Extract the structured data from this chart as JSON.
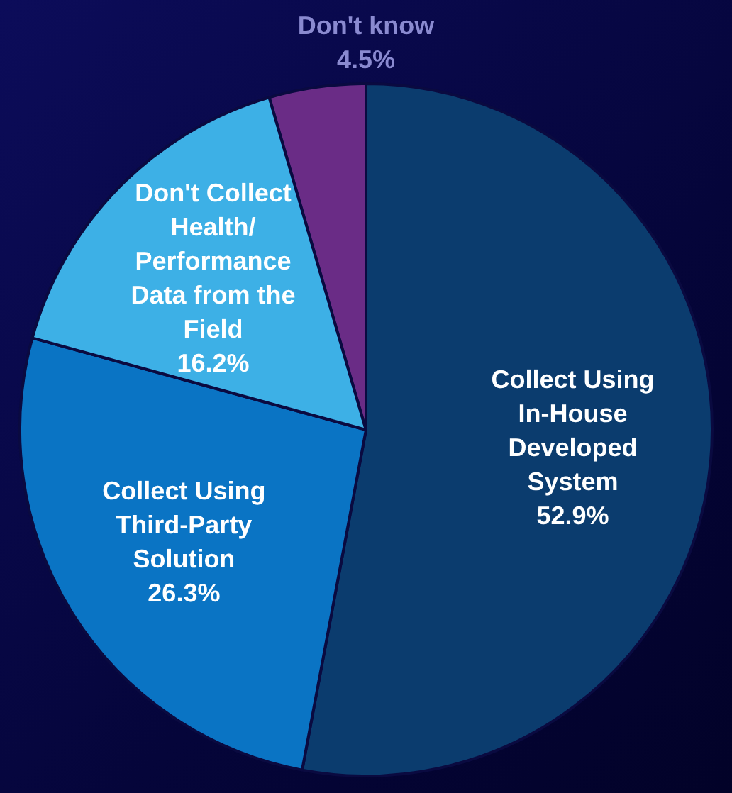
{
  "chart_data": {
    "type": "pie",
    "categories": [
      "Collect Using In-House Developed System",
      "Collect Using Third-Party Solution",
      "Don't Collect Health/ Performance Data from the Field",
      "Don't know"
    ],
    "values": [
      52.9,
      26.3,
      16.2,
      4.5
    ],
    "colors": [
      "#0b3c6e",
      "#0a74c4",
      "#3db0e6",
      "#6a2c86"
    ],
    "value_labels": [
      "52.9%",
      "26.3%",
      "16.2%",
      "4.5%"
    ],
    "legend": false
  }
}
